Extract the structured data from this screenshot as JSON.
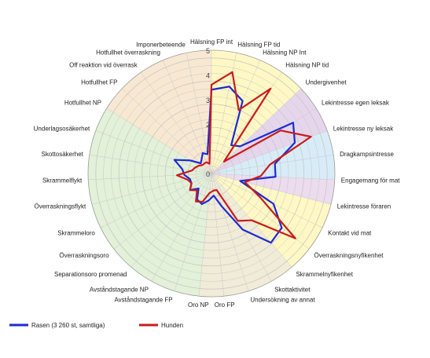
{
  "chart_data": {
    "type": "radar",
    "rlim": [
      0,
      5
    ],
    "ticks": [
      "0",
      "1",
      "2",
      "3",
      "4",
      "5"
    ],
    "grid": true,
    "legend_position": "bottom-left",
    "categories": [
      "Hälsning FP int",
      "Hälsning FP tid",
      "Hälsning NP Int",
      "Hälsning NP tid",
      "Undergivenhet",
      "Lekintresse egen leksak",
      "Lekintresse ny leksak",
      "Dragkampsintresse",
      "Engagemang för mat",
      "Lekintresse föraren",
      "Kontakt vid mat",
      "Överraskningsnyfikenhet",
      "Skrammelnyfikenhet",
      "Skottaktivitet",
      "Undersökning av annat",
      "Oro FP",
      "Oro NP",
      "Avståndstagande FP",
      "Avståndstagande NP",
      "Separationsoro promenad",
      "Överraskningsoro",
      "Skrammeloro",
      "Överraskningsflykt",
      "Skrammelflykt",
      "Skottosäkerhet",
      "Underlagsosäkerhet",
      "Hotfullhet NP",
      "Hotfullhet FP",
      "Off reaktion vid överrask",
      "Hotfullhet överraskning",
      "Imponerbeteende"
    ],
    "sectors": [
      {
        "start": 0,
        "end": 4,
        "color": "#fff8c4"
      },
      {
        "start": 4,
        "end": 6,
        "color": "#e6d6ec"
      },
      {
        "start": 6,
        "end": 8,
        "color": "#d8ecf8"
      },
      {
        "start": 8,
        "end": 9,
        "color": "#ecdcee"
      },
      {
        "start": 9,
        "end": 12,
        "color": "#fff8c4"
      },
      {
        "start": 12,
        "end": 16,
        "color": "#f1ecd8"
      },
      {
        "start": 16,
        "end": 26,
        "color": "#e2f1d8"
      },
      {
        "start": 26,
        "end": 31,
        "color": "#f8e8d2"
      }
    ],
    "series": [
      {
        "name": "Rasen (3 260 st, samtliga)",
        "color": "#1c2bd1",
        "values": [
          3.4,
          3.6,
          3.2,
          1.4,
          1.6,
          3.9,
          3.6,
          2.6,
          2.6,
          1.2,
          2.8,
          3.6,
          3.7,
          2.6,
          1.4,
          0.9,
          1.1,
          1.3,
          1.2,
          0.8,
          1.1,
          0.9,
          0.9,
          1.1,
          1.2,
          1.6,
          1.0,
          0.6,
          0.7,
          0.9,
          0.8
        ]
      },
      {
        "name": "Hunden",
        "color": "#c81c1c",
        "values": [
          3.6,
          4.2,
          2.8,
          4.2,
          0.7,
          3.3,
          4.3,
          2.4,
          2.0,
          1.4,
          2.2,
          4.3,
          2.5,
          2.2,
          0.7,
          0.7,
          0.8,
          1.2,
          1.3,
          0.9,
          1.1,
          0.9,
          1.0,
          1.4,
          0.8,
          0.7,
          0.6,
          0.5,
          0.5,
          0.5,
          0.4
        ]
      }
    ]
  }
}
